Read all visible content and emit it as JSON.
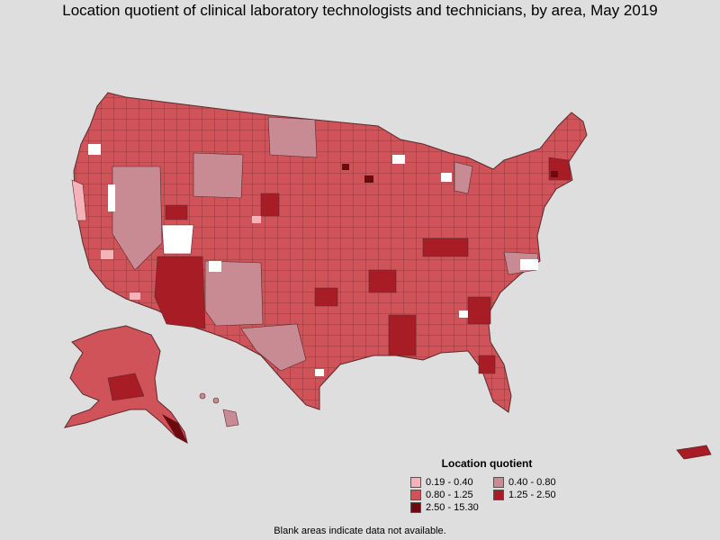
{
  "title": "Location quotient of clinical laboratory technologists and technicians, by area, May 2019",
  "legend": {
    "title": "Location quotient",
    "items": [
      {
        "label": "0.19 - 0.40",
        "color": "#f5b2b9"
      },
      {
        "label": "0.40 - 0.80",
        "color": "#c98b93"
      },
      {
        "label": "0.80 - 1.25",
        "color": "#cf5359"
      },
      {
        "label": "1.25 - 2.50",
        "color": "#a81c26"
      },
      {
        "label": "2.50 - 15.30",
        "color": "#6b0a0f"
      }
    ]
  },
  "footnote": "Blank areas indicate data not available.",
  "colors": {
    "background": "#dedede",
    "no_data": "#ffffff",
    "border": "#5a2a2e"
  }
}
